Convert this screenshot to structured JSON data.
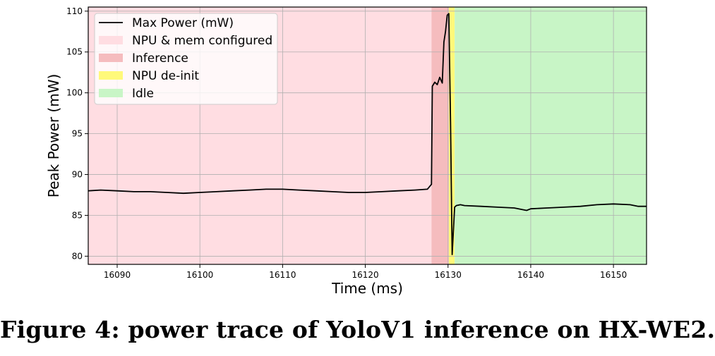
{
  "chart_data": {
    "type": "line",
    "ylabel": "Peak Power (mW)",
    "xlabel": "Time (ms)",
    "xlim": [
      16086.5,
      16154
    ],
    "ylim": [
      79,
      110.5
    ],
    "xticks": [
      16090,
      16100,
      16110,
      16120,
      16130,
      16140,
      16150
    ],
    "yticks": [
      80,
      85,
      90,
      95,
      100,
      105,
      110
    ],
    "grid": true,
    "regions": [
      {
        "name": "NPU & mem configured",
        "start": 16086.5,
        "end": 16128.0,
        "color": "#ffdde2"
      },
      {
        "name": "Inference",
        "start": 16128.0,
        "end": 16130.1,
        "color": "#f5bcbe"
      },
      {
        "name": "NPU de-init",
        "start": 16130.1,
        "end": 16130.8,
        "color": "#fff97a"
      },
      {
        "name": "Idle",
        "start": 16130.8,
        "end": 16154,
        "color": "#c8f5c6"
      }
    ],
    "series": [
      {
        "name": "Max Power (mW)",
        "color": "#000000",
        "x": [
          16086.5,
          16088,
          16090,
          16092,
          16094,
          16096,
          16098,
          16100,
          16102,
          16104,
          16106,
          16108,
          16110,
          16112,
          16114,
          16116,
          16118,
          16120,
          16122,
          16124,
          16126,
          16127.5,
          16128.0,
          16128.1,
          16128.4,
          16128.7,
          16129.0,
          16129.3,
          16129.5,
          16129.7,
          16129.9,
          16130.1,
          16130.3,
          16130.5,
          16130.8,
          16131.0,
          16131.5,
          16132,
          16134,
          16136,
          16138,
          16139.5,
          16140,
          16142,
          16144,
          16146,
          16148,
          16150,
          16152,
          16153,
          16154
        ],
        "values": [
          88.0,
          88.1,
          88.0,
          87.9,
          87.9,
          87.8,
          87.7,
          87.8,
          87.9,
          88.0,
          88.1,
          88.2,
          88.2,
          88.1,
          88.0,
          87.9,
          87.8,
          87.8,
          87.9,
          88.0,
          88.1,
          88.2,
          88.8,
          100.8,
          101.3,
          101.0,
          101.9,
          101.2,
          106.2,
          107.5,
          109.5,
          109.7,
          96.5,
          80.2,
          86.0,
          86.2,
          86.3,
          86.2,
          86.1,
          86.0,
          85.9,
          85.6,
          85.8,
          85.9,
          86.0,
          86.1,
          86.3,
          86.4,
          86.3,
          86.1,
          86.1
        ]
      }
    ]
  },
  "caption": "Figure 4: power trace of YoloV1 inference on HX-WE2."
}
